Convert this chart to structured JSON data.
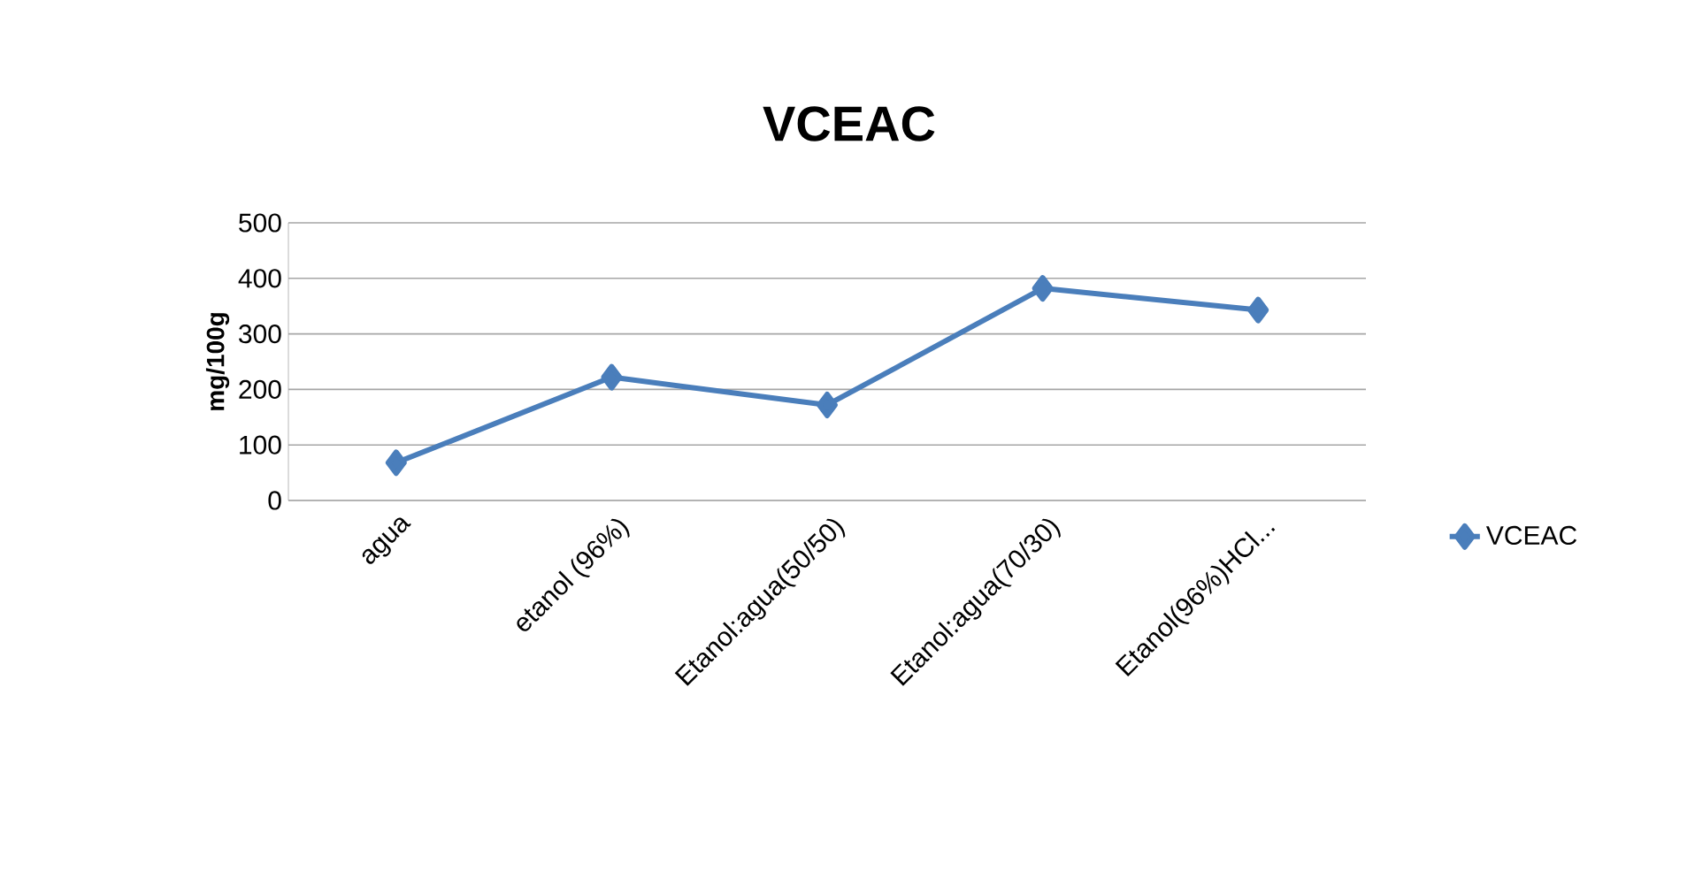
{
  "chart_data": {
    "type": "line",
    "title": "VCEAC",
    "ylabel": "mg/100g",
    "categories": [
      "agua",
      "etanol (96%)",
      "Etanol:agua(50/50)",
      "Etanol:agua(70/30)",
      "Etanol(96%)HCl..."
    ],
    "series": [
      {
        "name": "VCEAC",
        "color": "#4a7ebb",
        "values": [
          68,
          222,
          172,
          382,
          343
        ]
      }
    ],
    "ylim": [
      0,
      500
    ],
    "yticks": [
      0,
      100,
      200,
      300,
      400,
      500
    ],
    "grid": "y",
    "legend": "right",
    "marker": "diamond",
    "line_style": "solid"
  }
}
